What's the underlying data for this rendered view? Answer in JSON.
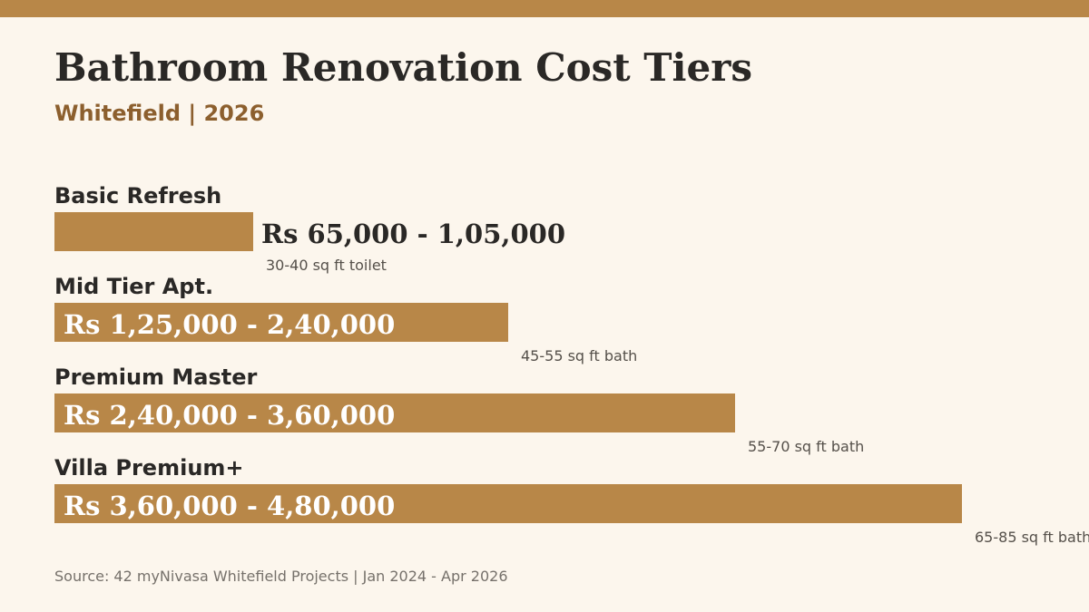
{
  "header": {
    "title": "Bathroom Renovation Cost Tiers",
    "subtitle": "Whitefield  |  2026"
  },
  "footer": {
    "source": "Source: 42 myNivasa Whitefield Projects  |  Jan 2024 - Apr 2026"
  },
  "colors": {
    "background": "#fcf6ed",
    "accent": "#b88748",
    "subtitle": "#8c5f2e",
    "text": "#2a2826"
  },
  "chart_data": {
    "type": "bar",
    "orientation": "horizontal",
    "title": "Bathroom Renovation Cost Tiers",
    "subtitle": "Whitefield  |  2026",
    "xlabel": "",
    "ylabel": "",
    "unit": "Rs",
    "xlim": [
      0,
      550000
    ],
    "grid": false,
    "categories": [
      "Basic Refresh",
      "Mid Tier Apt.",
      "Premium Master",
      "Villa Premium+"
    ],
    "ranges": [
      [
        65000,
        105000
      ],
      [
        125000,
        240000
      ],
      [
        240000,
        360000
      ],
      [
        360000,
        480000
      ]
    ],
    "values": [
      105000,
      240000,
      360000,
      480000
    ],
    "range_labels": [
      "Rs 65,000 - 1,05,000",
      "Rs 1,25,000 - 2,40,000",
      "Rs 2,40,000 - 3,60,000",
      "Rs 3,60,000 - 4,80,000"
    ],
    "notes": [
      "30-40 sq ft toilet",
      "45-55 sq ft bath",
      "55-70 sq ft bath",
      "65-85 sq ft bath"
    ]
  }
}
